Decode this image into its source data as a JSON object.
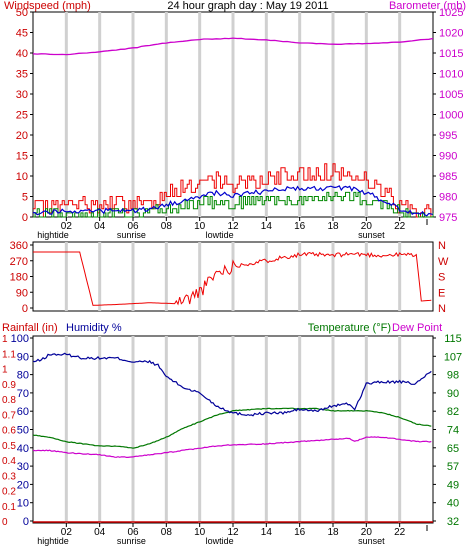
{
  "title": "24 hour graph day : May 19 2011",
  "colors": {
    "wind": "#ee0000",
    "wind_avg": "#0000cc",
    "wind_green": "#008800",
    "baro": "#cc00cc",
    "humidity": "#000099",
    "temperature": "#007700",
    "dewpoint": "#cc00cc",
    "rain": "#cc0000",
    "grid": "#d0d0d0"
  },
  "chart_data": [
    {
      "type": "line",
      "name": "wind-and-barometer",
      "left_label": "Windspeed (mph)",
      "right_label": "Barometer (mb)",
      "left_ticks": [
        "50",
        "45",
        "40",
        "35",
        "30",
        "25",
        "20",
        "15",
        "10",
        "5",
        "0"
      ],
      "right_ticks": [
        "1025",
        "1020",
        "1015",
        "1010",
        "1005",
        "1000",
        "995",
        "990",
        "985",
        "980",
        "975"
      ],
      "ylim_left": [
        0,
        50
      ],
      "ylim_right": [
        975,
        1025
      ],
      "x_ticks": [
        "02",
        "04",
        "06",
        "08",
        "10",
        "12",
        "14",
        "16",
        "18",
        "20",
        "22"
      ],
      "x_sub_labels": [
        {
          "hour": 1.2,
          "text": "hightide"
        },
        {
          "hour": 5.9,
          "text": "sunrise"
        },
        {
          "hour": 11.2,
          "text": "lowtide"
        },
        {
          "hour": 20.3,
          "text": "sunset"
        }
      ],
      "barometer": {
        "hours": [
          0,
          2,
          4,
          6,
          8,
          10,
          12,
          14,
          16,
          18,
          20,
          22,
          24
        ],
        "values": [
          1014.8,
          1014.6,
          1015.3,
          1016.2,
          1017.5,
          1018.3,
          1018.6,
          1018.2,
          1017.5,
          1017.1,
          1017.3,
          1017.7,
          1018.5
        ]
      },
      "wind_envelope": {
        "hours": [
          0,
          2,
          4,
          6,
          7,
          8,
          9,
          10,
          11,
          12,
          13,
          14,
          15,
          16,
          17,
          18,
          19,
          20,
          21,
          22,
          23,
          24
        ],
        "gust": [
          2,
          3,
          3,
          3,
          4,
          6,
          7,
          8,
          9,
          8,
          9,
          9,
          10,
          10,
          11,
          11,
          10,
          9,
          6,
          3,
          2,
          1
        ],
        "average": [
          1,
          1.5,
          1.5,
          1.5,
          2,
          3,
          4,
          5,
          6,
          5,
          6,
          6,
          7,
          7,
          7,
          7,
          7,
          6,
          4,
          2,
          1,
          0.5
        ],
        "lull": [
          0.5,
          1,
          1,
          1,
          1,
          2,
          3,
          3,
          4,
          3,
          4,
          4,
          4,
          4,
          5,
          5,
          5,
          4,
          3,
          1,
          0.5,
          0
        ]
      }
    },
    {
      "type": "line",
      "name": "wind-direction",
      "left_ticks": [
        "360",
        "270",
        "180",
        "90",
        "0"
      ],
      "right_ticks": [
        "N",
        "W",
        "S",
        "E",
        "N"
      ],
      "ylim": [
        0,
        360
      ],
      "direction": {
        "hours": [
          0,
          2.8,
          3.6,
          5,
          7,
          8.5,
          9.5,
          10.3,
          11,
          12,
          13,
          14,
          15,
          16,
          17,
          18,
          19,
          20,
          21,
          22,
          23,
          23.3,
          24
        ],
        "values": [
          320,
          320,
          15,
          20,
          30,
          25,
          60,
          120,
          200,
          240,
          255,
          270,
          290,
          305,
          305,
          300,
          310,
          305,
          300,
          305,
          305,
          40,
          45
        ]
      }
    },
    {
      "type": "line",
      "name": "humidity-temperature-rain",
      "labels": {
        "rain": "Rainfall (in)",
        "humidity": "Humidity %",
        "temperature": "Temperature (°F)",
        "dewpoint": "Dew Point"
      },
      "rain_ticks": [
        "1",
        "1.1",
        "1",
        "0.9",
        "0.8",
        "0.7",
        "0.6",
        "0.5",
        "0.4",
        "0.3",
        "0.2",
        "0.1",
        "0"
      ],
      "humidity_ticks": [
        "100",
        "90",
        "80",
        "70",
        "60",
        "50",
        "40",
        "30",
        "20",
        "10",
        "0"
      ],
      "temperature_ticks": [
        "115",
        "107",
        "98",
        "90",
        "82",
        "74",
        "65",
        "57",
        "49",
        "40",
        "32"
      ],
      "humidity_lim": [
        0,
        100
      ],
      "temperature_lim": [
        32,
        115
      ],
      "x_ticks": [
        "02",
        "04",
        "06",
        "08",
        "10",
        "12",
        "14",
        "16",
        "18",
        "20",
        "22"
      ],
      "x_sub_labels": [
        {
          "hour": 1.2,
          "text": "hightide"
        },
        {
          "hour": 5.9,
          "text": "sunrise"
        },
        {
          "hour": 11.2,
          "text": "lowtide"
        },
        {
          "hour": 20.3,
          "text": "sunset"
        }
      ],
      "humidity": {
        "hours": [
          0,
          0.5,
          1,
          2,
          3,
          4,
          5,
          6,
          7,
          7.5,
          8,
          9,
          10,
          11,
          12,
          13,
          14,
          15,
          16,
          17,
          18,
          19,
          19.3,
          20,
          21,
          22,
          23,
          24
        ],
        "values": [
          87,
          88,
          91,
          91,
          89,
          89,
          89,
          87,
          87,
          85,
          79,
          73,
          70,
          63,
          59,
          58,
          59,
          59,
          61,
          60,
          63,
          64,
          61,
          75,
          76,
          76,
          75,
          83
        ]
      },
      "temperature": {
        "hours": [
          0,
          1,
          2,
          4,
          5,
          6,
          7,
          8,
          9,
          10,
          11,
          12,
          13,
          14,
          15,
          16,
          17,
          18,
          19,
          20,
          21,
          22,
          23,
          24
        ],
        "values": [
          71,
          70,
          68,
          66,
          66,
          65,
          67,
          70,
          74,
          77,
          80,
          82,
          82.5,
          83,
          83,
          83,
          83,
          82,
          82,
          82,
          81,
          79,
          76,
          75
        ]
      },
      "dewpoint": {
        "hours": [
          0,
          1,
          2,
          4,
          5,
          6,
          7,
          8,
          9,
          10,
          11,
          12,
          14,
          16,
          18,
          19,
          19.3,
          20,
          21,
          22,
          23,
          24
        ],
        "values": [
          64,
          64,
          63,
          62,
          61,
          61,
          62,
          63,
          64,
          65,
          66,
          66.5,
          67,
          68,
          69,
          69.5,
          68,
          70,
          70,
          69,
          68,
          68
        ]
      },
      "rain": {
        "hours": [
          0,
          24
        ],
        "values": [
          0,
          0
        ]
      }
    }
  ]
}
